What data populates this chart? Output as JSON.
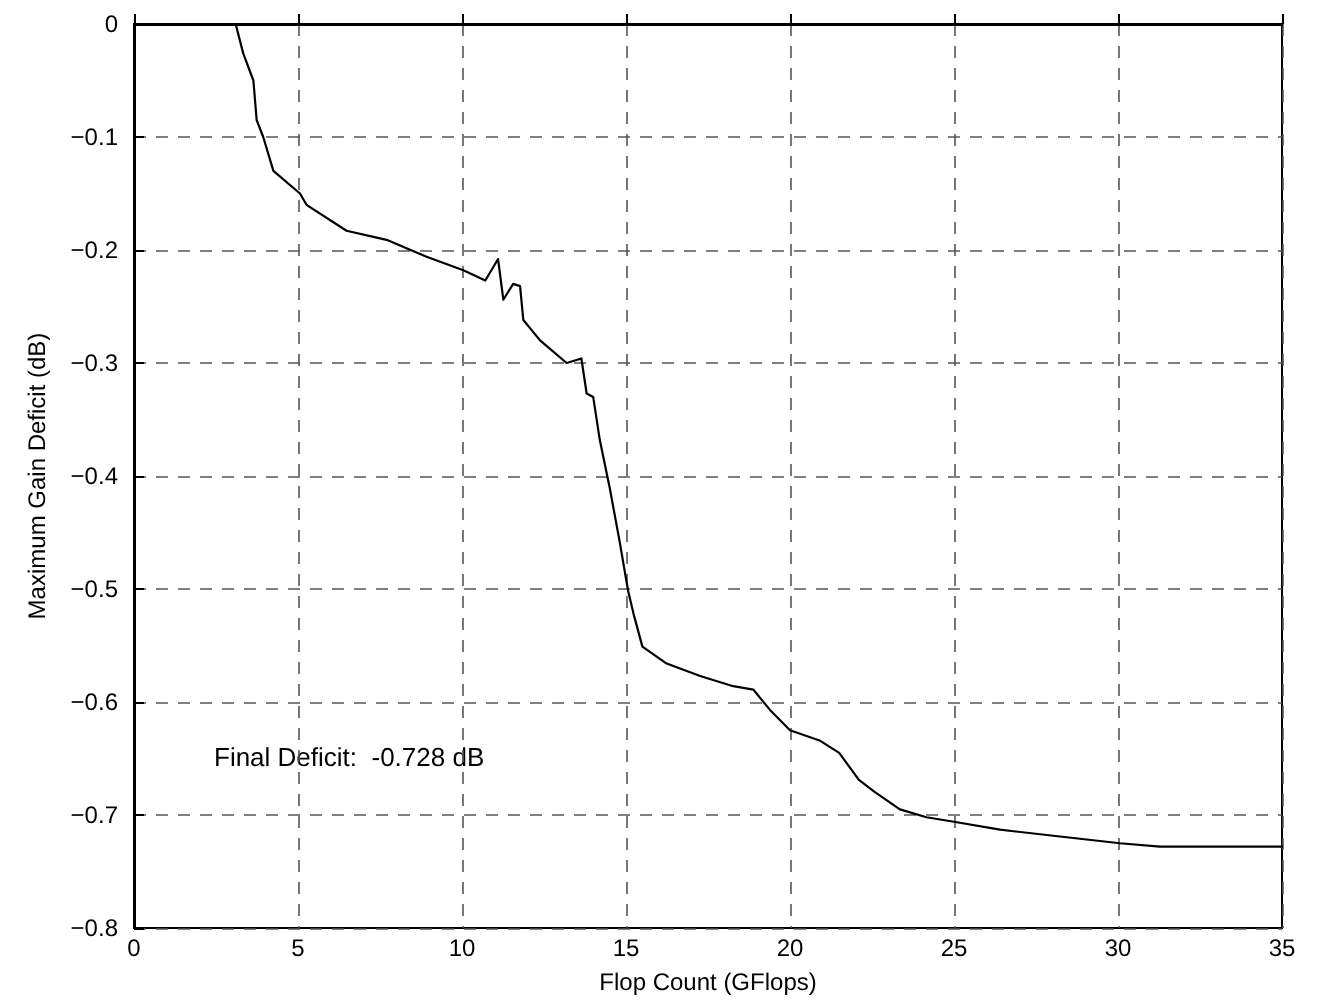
{
  "chart_data": {
    "type": "line",
    "xlabel": "Flop Count (GFlops)",
    "ylabel": "Maximum Gain Deficit (dB)",
    "annotations": [
      "Final Deficit:  -0.728 dB"
    ],
    "x": [
      0,
      3.1,
      3.33,
      3.64,
      3.74,
      3.94,
      4.25,
      5.06,
      5.26,
      6.48,
      7.7,
      8.92,
      10.04,
      10.71,
      11.1,
      11.26,
      11.56,
      11.77,
      11.87,
      12.38,
      13.19,
      13.64,
      13.8,
      14.0,
      14.2,
      14.5,
      14.8,
      15.06,
      15.23,
      15.5,
      16.24,
      17.26,
      18.27,
      18.88,
      19.39,
      20.0,
      20.9,
      21.5,
      22.1,
      22.6,
      23.35,
      24.16,
      25.0,
      26.4,
      28.23,
      30.06,
      31.28,
      35
    ],
    "series": [
      {
        "color": "#000000",
        "values": [
          0,
          0,
          -0.026,
          -0.05,
          -0.085,
          -0.1,
          -0.13,
          -0.15,
          -0.16,
          -0.183,
          -0.191,
          -0.206,
          -0.218,
          -0.227,
          -0.208,
          -0.244,
          -0.23,
          -0.232,
          -0.262,
          -0.28,
          -0.3,
          -0.296,
          -0.327,
          -0.33,
          -0.368,
          -0.41,
          -0.457,
          -0.501,
          -0.522,
          -0.551,
          -0.566,
          -0.577,
          -0.586,
          -0.589,
          -0.607,
          -0.625,
          -0.634,
          -0.645,
          -0.669,
          -0.68,
          -0.695,
          -0.702,
          -0.706,
          -0.713,
          -0.719,
          -0.725,
          -0.728,
          -0.728
        ]
      }
    ],
    "xlim": [
      0,
      35
    ],
    "xticks": [
      0,
      5,
      10,
      15,
      20,
      25,
      30,
      35
    ],
    "ylim": [
      -0.8,
      0
    ],
    "yticks": [
      -0.8,
      -0.7,
      -0.6,
      -0.5,
      -0.4,
      -0.3,
      -0.2,
      -0.1,
      0
    ],
    "grid": true,
    "marker": "none",
    "line_style": "solid"
  }
}
